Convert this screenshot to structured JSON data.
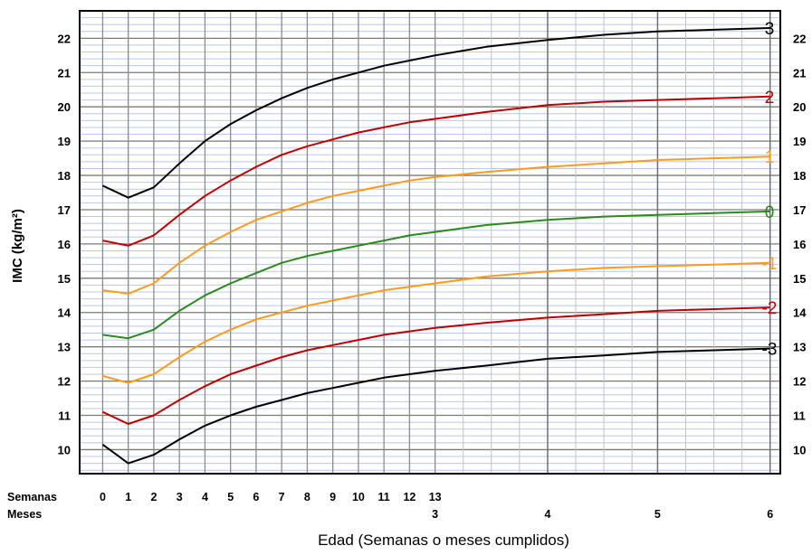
{
  "chart_data": {
    "type": "line",
    "title": "",
    "ylabel": "IMC (kg/m²)",
    "xlabel": "Edad (Semanas o meses cumplidos)",
    "ylim": [
      9.3,
      22.8
    ],
    "y_ticks": [
      10,
      11,
      12,
      13,
      14,
      15,
      16,
      17,
      18,
      19,
      20,
      21,
      22
    ],
    "x_unit": "weeks",
    "xlim": [
      -0.9,
      26.5
    ],
    "x_axis_rows": [
      {
        "label": "Semanas",
        "ticks": [
          {
            "x": 0,
            "label": "0"
          },
          {
            "x": 1,
            "label": "1"
          },
          {
            "x": 2,
            "label": "2"
          },
          {
            "x": 3,
            "label": "3"
          },
          {
            "x": 4,
            "label": "4"
          },
          {
            "x": 5,
            "label": "5"
          },
          {
            "x": 6,
            "label": "6"
          },
          {
            "x": 7,
            "label": "7"
          },
          {
            "x": 8,
            "label": "8"
          },
          {
            "x": 9,
            "label": "9"
          },
          {
            "x": 10,
            "label": "10"
          },
          {
            "x": 11,
            "label": "11"
          },
          {
            "x": 12,
            "label": "12"
          },
          {
            "x": 13,
            "label": "13"
          }
        ]
      },
      {
        "label": "Meses",
        "ticks": [
          {
            "x": 13,
            "label": "3"
          },
          {
            "x": 17.4,
            "label": "4"
          },
          {
            "x": 21.7,
            "label": "5"
          },
          {
            "x": 26.1,
            "label": "6"
          }
        ]
      }
    ],
    "grid": {
      "vertical_weeks": [
        0,
        1,
        2,
        3,
        4,
        5,
        6,
        7,
        8,
        9,
        10,
        11,
        12,
        13
      ],
      "vertical_month_minor": [
        14.1,
        15.2,
        16.3,
        18.5,
        19.6,
        20.7,
        22.8,
        23.9,
        25.0
      ],
      "vertical_month_major": [
        17.4,
        21.7,
        26.1
      ],
      "horizontal_major_step": 1,
      "horizontal_minor_step": 0.2
    },
    "series": [
      {
        "name": "3",
        "color": "#000000",
        "x": [
          0,
          1,
          2,
          3,
          4,
          5,
          6,
          7,
          8,
          9,
          10,
          11,
          12,
          13,
          15,
          17.4,
          19.6,
          21.7,
          23.9,
          26.1
        ],
        "y": [
          17.7,
          17.35,
          17.65,
          18.35,
          19.0,
          19.5,
          19.9,
          20.25,
          20.55,
          20.8,
          21.0,
          21.2,
          21.35,
          21.5,
          21.75,
          21.95,
          22.1,
          22.2,
          22.25,
          22.3
        ]
      },
      {
        "name": "2",
        "color": "#c00000",
        "x": [
          0,
          1,
          2,
          3,
          4,
          5,
          6,
          7,
          8,
          9,
          10,
          11,
          12,
          13,
          15,
          17.4,
          19.6,
          21.7,
          23.9,
          26.1
        ],
        "y": [
          16.1,
          15.95,
          16.25,
          16.85,
          17.4,
          17.85,
          18.25,
          18.6,
          18.85,
          19.05,
          19.25,
          19.4,
          19.55,
          19.65,
          19.85,
          20.05,
          20.15,
          20.2,
          20.25,
          20.3
        ]
      },
      {
        "name": "1",
        "color": "#ff9a1a",
        "x": [
          0,
          1,
          2,
          3,
          4,
          5,
          6,
          7,
          8,
          9,
          10,
          11,
          12,
          13,
          15,
          17.4,
          19.6,
          21.7,
          23.9,
          26.1
        ],
        "y": [
          14.65,
          14.55,
          14.85,
          15.45,
          15.95,
          16.35,
          16.7,
          16.95,
          17.2,
          17.4,
          17.55,
          17.7,
          17.85,
          17.95,
          18.1,
          18.25,
          18.35,
          18.45,
          18.5,
          18.55
        ]
      },
      {
        "name": "0",
        "color": "#2a8a1a",
        "x": [
          0,
          1,
          2,
          3,
          4,
          5,
          6,
          7,
          8,
          9,
          10,
          11,
          12,
          13,
          15,
          17.4,
          19.6,
          21.7,
          23.9,
          26.1
        ],
        "y": [
          13.35,
          13.25,
          13.5,
          14.05,
          14.5,
          14.85,
          15.15,
          15.45,
          15.65,
          15.8,
          15.95,
          16.1,
          16.25,
          16.35,
          16.55,
          16.7,
          16.8,
          16.85,
          16.9,
          16.95
        ]
      },
      {
        "name": "-1",
        "color": "#ff9a1a",
        "x": [
          0,
          1,
          2,
          3,
          4,
          5,
          6,
          7,
          8,
          9,
          10,
          11,
          12,
          13,
          15,
          17.4,
          19.6,
          21.7,
          23.9,
          26.1
        ],
        "y": [
          12.15,
          11.95,
          12.2,
          12.7,
          13.15,
          13.5,
          13.8,
          14.0,
          14.2,
          14.35,
          14.5,
          14.65,
          14.75,
          14.85,
          15.05,
          15.2,
          15.3,
          15.35,
          15.4,
          15.45
        ]
      },
      {
        "name": "-2",
        "color": "#c00000",
        "x": [
          0,
          1,
          2,
          3,
          4,
          5,
          6,
          7,
          8,
          9,
          10,
          11,
          12,
          13,
          15,
          17.4,
          19.6,
          21.7,
          23.9,
          26.1
        ],
        "y": [
          11.1,
          10.75,
          11.0,
          11.45,
          11.85,
          12.2,
          12.45,
          12.7,
          12.9,
          13.05,
          13.2,
          13.35,
          13.45,
          13.55,
          13.7,
          13.85,
          13.95,
          14.05,
          14.1,
          14.15
        ]
      },
      {
        "name": "-3",
        "color": "#000000",
        "x": [
          0,
          1,
          2,
          3,
          4,
          5,
          6,
          7,
          8,
          9,
          10,
          11,
          12,
          13,
          15,
          17.4,
          19.6,
          21.7,
          23.9,
          26.1
        ],
        "y": [
          10.15,
          9.6,
          9.85,
          10.3,
          10.7,
          11.0,
          11.25,
          11.45,
          11.65,
          11.8,
          11.95,
          12.1,
          12.2,
          12.3,
          12.45,
          12.65,
          12.75,
          12.85,
          12.9,
          12.95
        ]
      }
    ]
  }
}
